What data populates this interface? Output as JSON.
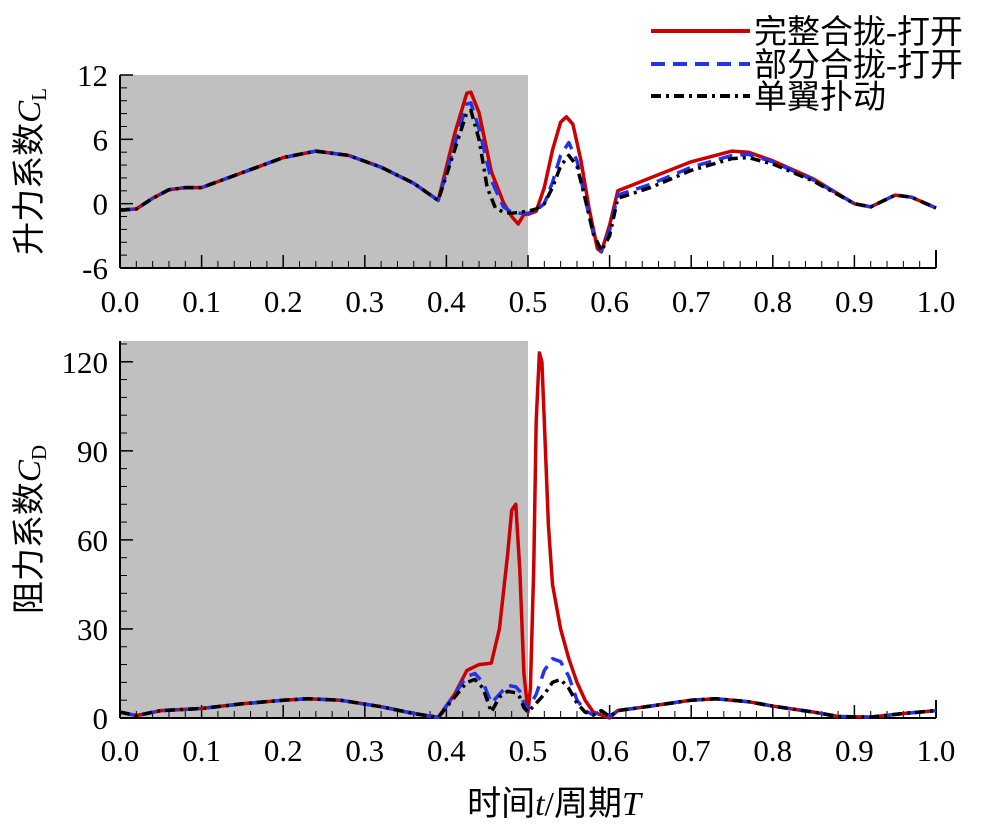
{
  "legend": {
    "placement": "top-right",
    "entries": [
      {
        "label": "完整合拢-打开",
        "color": "#cc0000",
        "style": "solid"
      },
      {
        "label": "部分合拢-打开",
        "color": "#2233ee",
        "style": "dashed"
      },
      {
        "label": "单翼扑动",
        "color": "#000000",
        "style": "dashdot"
      }
    ]
  },
  "shaded_region": {
    "x_start": 0.0,
    "x_end": 0.5,
    "color": "#c0c0c0"
  },
  "xlabel": {
    "prefix": "时间",
    "var": "t",
    "sep": "/周期",
    "var2": "T"
  },
  "chart_data": [
    {
      "type": "line",
      "id": "lift",
      "ylabel": {
        "text": "升力系数",
        "symbol": "C",
        "sub": "L"
      },
      "xlim": [
        0,
        1
      ],
      "ylim": [
        -6,
        12
      ],
      "xticks": [
        "0.0",
        "0.1",
        "0.2",
        "0.3",
        "0.4",
        "0.5",
        "0.6",
        "0.7",
        "0.8",
        "0.9",
        "1.0"
      ],
      "yticks": [
        "-6",
        "0",
        "6",
        "12"
      ],
      "series": [
        {
          "name": "完整合拢-打开",
          "color": "#cc0000",
          "style": "solid",
          "x": [
            0.0,
            0.02,
            0.04,
            0.06,
            0.08,
            0.1,
            0.15,
            0.2,
            0.24,
            0.28,
            0.32,
            0.36,
            0.39,
            0.41,
            0.425,
            0.43,
            0.44,
            0.455,
            0.47,
            0.48,
            0.488,
            0.495,
            0.5,
            0.51,
            0.52,
            0.53,
            0.54,
            0.547,
            0.555,
            0.565,
            0.575,
            0.585,
            0.59,
            0.6,
            0.61,
            0.65,
            0.7,
            0.75,
            0.77,
            0.8,
            0.85,
            0.9,
            0.92,
            0.95,
            0.97,
            1.0
          ],
          "y": [
            -0.6,
            -0.5,
            0.5,
            1.3,
            1.5,
            1.5,
            2.9,
            4.3,
            4.9,
            4.5,
            3.4,
            1.9,
            0.3,
            6.5,
            10.3,
            10.4,
            8.5,
            3.0,
            0.1,
            -1.2,
            -1.9,
            -1.0,
            -1.0,
            -0.7,
            1.5,
            5.0,
            7.6,
            8.1,
            7.4,
            4.0,
            -0.5,
            -4.2,
            -4.5,
            -2.0,
            1.2,
            2.4,
            3.9,
            4.9,
            4.8,
            4.0,
            2.3,
            0.0,
            -0.3,
            0.8,
            0.6,
            -0.4
          ]
        },
        {
          "name": "部分合拢-打开",
          "color": "#2233ee",
          "style": "dashed",
          "x": [
            0.0,
            0.02,
            0.04,
            0.06,
            0.08,
            0.1,
            0.15,
            0.2,
            0.24,
            0.28,
            0.32,
            0.36,
            0.39,
            0.41,
            0.425,
            0.43,
            0.44,
            0.455,
            0.47,
            0.48,
            0.49,
            0.5,
            0.51,
            0.52,
            0.53,
            0.54,
            0.55,
            0.56,
            0.57,
            0.58,
            0.59,
            0.6,
            0.61,
            0.65,
            0.7,
            0.75,
            0.77,
            0.8,
            0.85,
            0.9,
            0.92,
            0.95,
            0.97,
            1.0
          ],
          "y": [
            -0.6,
            -0.5,
            0.5,
            1.3,
            1.5,
            1.5,
            2.9,
            4.3,
            4.9,
            4.5,
            3.4,
            1.9,
            0.3,
            5.5,
            9.3,
            9.4,
            7.0,
            2.2,
            -0.3,
            -0.8,
            -0.9,
            -0.9,
            -0.6,
            0.0,
            2.0,
            4.5,
            5.7,
            4.0,
            0.5,
            -2.8,
            -4.4,
            -2.5,
            0.8,
            1.8,
            3.4,
            4.5,
            4.6,
            3.9,
            2.2,
            0.0,
            -0.3,
            0.8,
            0.6,
            -0.4
          ]
        },
        {
          "name": "单翼扑动",
          "color": "#000000",
          "style": "dashdot",
          "x": [
            0.0,
            0.02,
            0.04,
            0.06,
            0.08,
            0.1,
            0.15,
            0.2,
            0.24,
            0.28,
            0.32,
            0.36,
            0.39,
            0.41,
            0.425,
            0.43,
            0.44,
            0.45,
            0.46,
            0.47,
            0.48,
            0.49,
            0.5,
            0.51,
            0.52,
            0.53,
            0.54,
            0.55,
            0.56,
            0.57,
            0.58,
            0.59,
            0.6,
            0.61,
            0.65,
            0.7,
            0.75,
            0.77,
            0.8,
            0.85,
            0.9,
            0.92,
            0.95,
            0.97,
            1.0
          ],
          "y": [
            -0.6,
            -0.5,
            0.5,
            1.3,
            1.5,
            1.5,
            2.9,
            4.3,
            4.9,
            4.5,
            3.4,
            1.9,
            0.3,
            5.0,
            8.5,
            8.7,
            6.0,
            1.5,
            -0.4,
            -0.8,
            -0.9,
            -0.8,
            -0.7,
            -0.5,
            0.0,
            1.5,
            3.5,
            4.5,
            3.5,
            0.5,
            -2.8,
            -4.4,
            -3.0,
            0.5,
            1.5,
            3.1,
            4.2,
            4.3,
            3.7,
            2.1,
            0.0,
            -0.3,
            0.8,
            0.6,
            -0.4
          ]
        }
      ]
    },
    {
      "type": "line",
      "id": "drag",
      "ylabel": {
        "text": "阻力系数",
        "symbol": "C",
        "sub": "D"
      },
      "xlim": [
        0,
        1
      ],
      "ylim": [
        0,
        127
      ],
      "xticks": [
        "0.0",
        "0.1",
        "0.2",
        "0.3",
        "0.4",
        "0.5",
        "0.6",
        "0.7",
        "0.8",
        "0.9",
        "1.0"
      ],
      "yticks": [
        "0",
        "30",
        "60",
        "90",
        "120"
      ],
      "series": [
        {
          "name": "完整合拢-打开",
          "color": "#cc0000",
          "style": "solid",
          "x": [
            0.0,
            0.02,
            0.05,
            0.1,
            0.15,
            0.2,
            0.23,
            0.27,
            0.32,
            0.36,
            0.39,
            0.41,
            0.425,
            0.44,
            0.455,
            0.465,
            0.475,
            0.48,
            0.485,
            0.49,
            0.495,
            0.5,
            0.503,
            0.507,
            0.51,
            0.514,
            0.517,
            0.52,
            0.525,
            0.53,
            0.54,
            0.55,
            0.56,
            0.57,
            0.58,
            0.59,
            0.6,
            0.61,
            0.65,
            0.7,
            0.73,
            0.77,
            0.8,
            0.85,
            0.88,
            0.92,
            0.96,
            1.0
          ],
          "y": [
            2.0,
            0.8,
            2.5,
            3.2,
            4.8,
            6.0,
            6.5,
            6.0,
            3.8,
            1.5,
            0.2,
            8.0,
            16.0,
            18.0,
            18.5,
            30.0,
            55.0,
            70.0,
            72.0,
            50.0,
            15.0,
            2.0,
            10.0,
            50.0,
            100.0,
            123.0,
            120.0,
            100.0,
            65.0,
            45.0,
            30.0,
            20.0,
            12.0,
            6.0,
            2.0,
            1.0,
            0.0,
            2.5,
            4.0,
            6.0,
            6.5,
            5.5,
            4.0,
            2.0,
            0.5,
            0.3,
            1.5,
            2.5
          ]
        },
        {
          "name": "部分合拢-打开",
          "color": "#2233ee",
          "style": "dashed",
          "x": [
            0.0,
            0.02,
            0.05,
            0.1,
            0.15,
            0.2,
            0.23,
            0.27,
            0.32,
            0.36,
            0.39,
            0.41,
            0.425,
            0.435,
            0.445,
            0.455,
            0.465,
            0.475,
            0.485,
            0.49,
            0.495,
            0.5,
            0.51,
            0.52,
            0.53,
            0.54,
            0.55,
            0.56,
            0.57,
            0.58,
            0.59,
            0.6,
            0.61,
            0.65,
            0.7,
            0.73,
            0.77,
            0.8,
            0.85,
            0.88,
            0.92,
            0.96,
            1.0
          ],
          "y": [
            2.0,
            0.8,
            2.5,
            3.2,
            4.8,
            6.0,
            6.5,
            6.0,
            3.8,
            1.5,
            0.2,
            8.0,
            14.0,
            15.0,
            12.0,
            5.0,
            8.0,
            11.0,
            10.5,
            9.0,
            5.0,
            3.0,
            8.0,
            16.0,
            20.0,
            19.0,
            14.0,
            6.0,
            2.5,
            1.0,
            2.5,
            0.5,
            2.5,
            4.0,
            6.0,
            6.5,
            5.5,
            4.0,
            2.0,
            0.5,
            0.3,
            1.5,
            2.5
          ]
        },
        {
          "name": "单翼扑动",
          "color": "#000000",
          "style": "dashdot",
          "x": [
            0.0,
            0.02,
            0.05,
            0.1,
            0.15,
            0.2,
            0.23,
            0.27,
            0.32,
            0.36,
            0.39,
            0.41,
            0.425,
            0.435,
            0.445,
            0.455,
            0.465,
            0.475,
            0.485,
            0.49,
            0.495,
            0.5,
            0.51,
            0.52,
            0.53,
            0.54,
            0.55,
            0.56,
            0.57,
            0.58,
            0.59,
            0.6,
            0.61,
            0.65,
            0.7,
            0.73,
            0.77,
            0.8,
            0.85,
            0.88,
            0.92,
            0.96,
            1.0
          ],
          "y": [
            2.0,
            0.8,
            2.5,
            3.2,
            4.8,
            6.0,
            6.5,
            6.0,
            3.8,
            1.5,
            0.2,
            7.0,
            12.0,
            13.0,
            10.0,
            2.0,
            7.0,
            9.0,
            8.5,
            7.0,
            3.5,
            2.0,
            5.0,
            8.0,
            12.0,
            13.0,
            10.0,
            5.0,
            2.0,
            1.0,
            2.5,
            0.5,
            2.5,
            4.0,
            6.0,
            6.5,
            5.5,
            4.0,
            2.0,
            0.5,
            0.3,
            1.5,
            2.5
          ]
        }
      ]
    }
  ]
}
